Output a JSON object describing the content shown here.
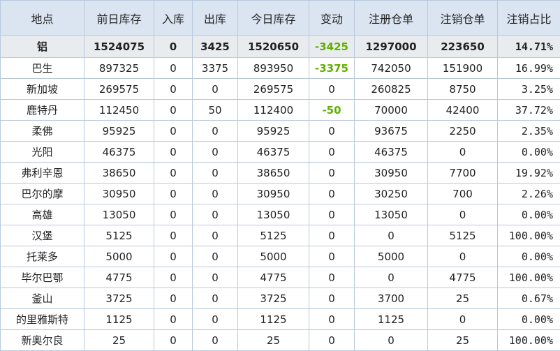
{
  "table": {
    "header": [
      "地点",
      "前日库存",
      "入库",
      "出库",
      "今日库存",
      "变动",
      "注册仓单",
      "注销仓单",
      "注销占比"
    ],
    "rows": [
      [
        "铝",
        "1524075",
        "0",
        "3425",
        "1520650",
        "-3425",
        "1297000",
        "223650",
        "14.71%"
      ],
      [
        "巴生",
        "897325",
        "0",
        "3375",
        "893950",
        "-3375",
        "742050",
        "151900",
        "16.99%"
      ],
      [
        "新加坡",
        "269575",
        "0",
        "0",
        "269575",
        "0",
        "260825",
        "8750",
        "3.25%"
      ],
      [
        "鹿特丹",
        "112450",
        "0",
        "50",
        "112400",
        "-50",
        "70000",
        "42400",
        "37.72%"
      ],
      [
        "柔佛",
        "95925",
        "0",
        "0",
        "95925",
        "0",
        "93675",
        "2250",
        "2.35%"
      ],
      [
        "光阳",
        "46375",
        "0",
        "0",
        "46375",
        "0",
        "46375",
        "0",
        "0.00%"
      ],
      [
        "弗利辛恩",
        "38650",
        "0",
        "0",
        "38650",
        "0",
        "30950",
        "7700",
        "19.92%"
      ],
      [
        "巴尔的摩",
        "30950",
        "0",
        "0",
        "30950",
        "0",
        "30250",
        "700",
        "2.26%"
      ],
      [
        "高雄",
        "13050",
        "0",
        "0",
        "13050",
        "0",
        "13050",
        "0",
        "0.00%"
      ],
      [
        "汉堡",
        "5125",
        "0",
        "0",
        "5125",
        "0",
        "0",
        "5125",
        "100.00%"
      ],
      [
        "托莱多",
        "5000",
        "0",
        "0",
        "5000",
        "0",
        "5000",
        "0",
        "0.00%"
      ],
      [
        "毕尔巴鄂",
        "4775",
        "0",
        "0",
        "4775",
        "0",
        "0",
        "4775",
        "100.00%"
      ],
      [
        "釜山",
        "3725",
        "0",
        "0",
        "3725",
        "0",
        "3700",
        "25",
        "0.67%"
      ],
      [
        "的里雅斯特",
        "1125",
        "0",
        "0",
        "1125",
        "0",
        "1125",
        "0",
        "0.00%"
      ],
      [
        "新奥尔良",
        "25",
        "0",
        "0",
        "25",
        "0",
        "0",
        "25",
        "100.00%"
      ]
    ]
  }
}
